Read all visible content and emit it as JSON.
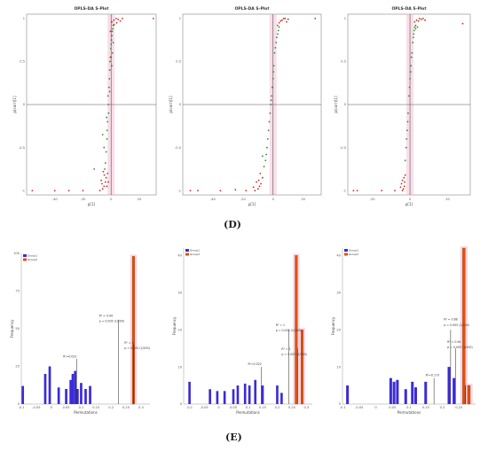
{
  "labels": {
    "d": "(D)",
    "e": "(E)"
  },
  "colors": {
    "pos": "#2e8b2e",
    "neg": "#c62a1e",
    "pink": "#f2b6cf",
    "blue": "#3a2bd8",
    "orange": "#e0520b",
    "grid": "#555555"
  },
  "chart_data": [
    {
      "type": "scatter",
      "title": "OPLS-DA S-Plot",
      "xlabel": "p[1]",
      "ylabel": "p(corr)[1]",
      "xlim": [
        -60,
        32
      ],
      "ylim": [
        -1.05,
        1.05
      ],
      "xticks": [
        -40,
        -20,
        0,
        20
      ],
      "yticks": [
        -1,
        -0.5,
        0,
        0.5,
        1
      ],
      "series_pos": [
        [
          -2.5,
          -0.2
        ],
        [
          -2,
          0
        ],
        [
          -1.5,
          0.2
        ],
        [
          -1,
          0.4
        ],
        [
          -0.5,
          0.55
        ],
        [
          0,
          0.7
        ],
        [
          0.6,
          0.8
        ],
        [
          1.2,
          0.88
        ],
        [
          2.2,
          0.93
        ],
        [
          -3,
          -0.4
        ],
        [
          -3.5,
          -0.55
        ],
        [
          -4,
          -0.68
        ],
        [
          -2.2,
          0.1
        ],
        [
          -1.8,
          -0.1
        ],
        [
          -0.8,
          0.5
        ],
        [
          0.3,
          0.75
        ],
        [
          1,
          0.6
        ],
        [
          -1.2,
          0.3
        ],
        [
          -4.5,
          -0.75
        ],
        [
          -2.8,
          -0.3
        ],
        [
          -0.2,
          0.65
        ],
        [
          0.8,
          0.85
        ],
        [
          -6,
          -0.35
        ],
        [
          -5,
          -0.5
        ],
        [
          1.5,
          0.72
        ],
        [
          -1,
          0.15
        ],
        [
          -3.2,
          -0.15
        ],
        [
          0.5,
          0.45
        ],
        [
          -12,
          -0.75
        ]
      ],
      "series_neg": [
        [
          -8,
          -1
        ],
        [
          -6,
          -0.98
        ],
        [
          -5,
          -0.95
        ],
        [
          -4,
          -0.9
        ],
        [
          -3.5,
          -0.85
        ],
        [
          -2.5,
          -0.8
        ],
        [
          -6.5,
          -0.92
        ],
        [
          -7,
          -0.88
        ],
        [
          -4.8,
          -0.82
        ],
        [
          -3,
          -0.95
        ],
        [
          -5.5,
          -0.78
        ],
        [
          -2,
          -0.9
        ],
        [
          0.5,
          0.96
        ],
        [
          2,
          0.98
        ],
        [
          3.5,
          1
        ],
        [
          5,
          0.99
        ],
        [
          6.5,
          0.97
        ],
        [
          8,
          1
        ],
        [
          1.5,
          0.92
        ],
        [
          4,
          0.95
        ],
        [
          -0.5,
          0.85
        ],
        [
          0,
          0.55
        ],
        [
          30,
          1
        ],
        [
          -56,
          -1
        ],
        [
          -30,
          -1
        ],
        [
          -20,
          -1
        ],
        [
          -40,
          -1
        ]
      ]
    },
    {
      "type": "scatter",
      "title": "OPLS-DA S-Plot",
      "xlabel": "p[1]",
      "ylabel": "p(corr)[1]",
      "xlim": [
        -60,
        32
      ],
      "ylim": [
        -1.05,
        1.05
      ],
      "xticks": [
        -40,
        -20,
        0,
        20
      ],
      "yticks": [
        -1,
        -0.5,
        0,
        0.5,
        1
      ],
      "series_pos": [
        [
          -4,
          -0.5
        ],
        [
          -3,
          -0.3
        ],
        [
          -2,
          -0.1
        ],
        [
          -1,
          0.1
        ],
        [
          0,
          0.3
        ],
        [
          0.5,
          0.45
        ],
        [
          1,
          0.6
        ],
        [
          2,
          0.72
        ],
        [
          3,
          0.82
        ],
        [
          4,
          0.9
        ],
        [
          -5,
          -0.65
        ],
        [
          -6,
          -0.72
        ],
        [
          -2.5,
          -0.2
        ],
        [
          -0.5,
          0.2
        ],
        [
          1.5,
          0.66
        ],
        [
          2.5,
          0.78
        ],
        [
          -3.5,
          -0.4
        ],
        [
          -1.5,
          0
        ],
        [
          0.2,
          0.38
        ],
        [
          3.5,
          0.86
        ],
        [
          -7,
          -0.6
        ],
        [
          -4.5,
          -0.58
        ],
        [
          -1.2,
          0.05
        ]
      ],
      "series_neg": [
        [
          -12,
          -1
        ],
        [
          -10,
          -0.98
        ],
        [
          -9,
          -0.95
        ],
        [
          -8,
          -0.92
        ],
        [
          -11,
          -0.9
        ],
        [
          -7,
          -0.85
        ],
        [
          -9.5,
          -0.88
        ],
        [
          -13,
          -0.96
        ],
        [
          -8.5,
          -0.8
        ],
        [
          4,
          0.95
        ],
        [
          6,
          0.98
        ],
        [
          8,
          1
        ],
        [
          10,
          0.99
        ],
        [
          5,
          0.97
        ],
        [
          7,
          1
        ],
        [
          9,
          0.96
        ],
        [
          3,
          0.92
        ],
        [
          28,
          1
        ],
        [
          -50,
          -1
        ],
        [
          -55,
          -1
        ],
        [
          -35,
          -1
        ],
        [
          -25,
          -0.99
        ],
        [
          -18,
          -1
        ]
      ]
    },
    {
      "type": "scatter",
      "title": "OPLS-DA S-Plot",
      "xlabel": "p[1]",
      "ylabel": "p(corr)[1]",
      "xlim": [
        -33,
        32
      ],
      "ylim": [
        -1.05,
        1.05
      ],
      "xticks": [
        -20,
        0,
        20
      ],
      "yticks": [
        -1,
        -0.5,
        0,
        0.5,
        1
      ],
      "series_pos": [
        [
          -2,
          -0.5
        ],
        [
          -1.5,
          -0.3
        ],
        [
          -1,
          -0.1
        ],
        [
          -0.5,
          0.1
        ],
        [
          0,
          0.3
        ],
        [
          0.5,
          0.45
        ],
        [
          1,
          0.6
        ],
        [
          1.5,
          0.72
        ],
        [
          2,
          0.82
        ],
        [
          2.5,
          0.9
        ],
        [
          -2.5,
          -0.65
        ],
        [
          -1.2,
          -0.2
        ],
        [
          -0.2,
          0.2
        ],
        [
          0.8,
          0.55
        ],
        [
          1.8,
          0.78
        ],
        [
          -1.8,
          -0.4
        ],
        [
          0.3,
          0.38
        ],
        [
          3,
          0.88
        ],
        [
          4,
          0.9
        ],
        [
          2.2,
          0.86
        ]
      ],
      "series_neg": [
        [
          -4,
          -1
        ],
        [
          -3.5,
          -0.98
        ],
        [
          -3,
          -0.95
        ],
        [
          -2.8,
          -0.9
        ],
        [
          -4.5,
          -0.92
        ],
        [
          -3.2,
          -0.85
        ],
        [
          -5,
          -0.96
        ],
        [
          -2.5,
          -0.82
        ],
        [
          -4,
          -0.88
        ],
        [
          2.5,
          0.96
        ],
        [
          3.5,
          0.98
        ],
        [
          5,
          1
        ],
        [
          6,
          0.99
        ],
        [
          4.5,
          0.97
        ],
        [
          7,
          1
        ],
        [
          3,
          0.92
        ],
        [
          8,
          0.98
        ],
        [
          28,
          0.94
        ],
        [
          -28,
          -1
        ],
        [
          -30,
          -1
        ],
        [
          -15,
          -1
        ],
        [
          -8,
          -1
        ]
      ]
    },
    {
      "type": "bar",
      "legend": [
        "Group1",
        "Group2"
      ],
      "xlabel": "Permutations",
      "ylabel": "Frequency",
      "xlim": [
        -0.1,
        0.33
      ],
      "ylim": [
        0,
        100
      ],
      "xticks": [
        -0.1,
        -0.05,
        0,
        0.05,
        0.1,
        0.15,
        0.2,
        0.25,
        0.3
      ],
      "yticks": [
        0,
        25,
        50,
        75,
        100
      ],
      "blue_bars": [
        [
          -0.095,
          12
        ],
        [
          -0.02,
          20
        ],
        [
          -0.005,
          25
        ],
        [
          0.025,
          11
        ],
        [
          0.05,
          10
        ],
        [
          0.065,
          16
        ],
        [
          0.072,
          20
        ],
        [
          0.08,
          22
        ],
        [
          0.088,
          10
        ],
        [
          0.1,
          14
        ],
        [
          0.115,
          10
        ],
        [
          0.13,
          12
        ]
      ],
      "orange_bars": [
        [
          0.275,
          98
        ]
      ],
      "markers": [
        [
          0.085,
          30
        ],
        [
          0.225,
          56
        ],
        [
          0.275,
          40
        ]
      ],
      "annotations": [
        {
          "x": 0.04,
          "y": 31,
          "text": "R²=0.022"
        },
        {
          "x": 0.16,
          "y": 58,
          "text": "R² = 0.94"
        },
        {
          "x": 0.16,
          "y": 54.5,
          "text": "p = 0.005 (1/200)"
        },
        {
          "x": 0.245,
          "y": 40,
          "text": "R² = 1"
        },
        {
          "x": 0.245,
          "y": 36.5,
          "text": "p = 0.005 (1/200)"
        }
      ]
    },
    {
      "type": "bar",
      "legend": [
        "Group1",
        "Group2"
      ],
      "xlabel": "Permutations",
      "ylabel": "Frequency",
      "xlim": [
        -0.12,
        0.32
      ],
      "ylim": [
        0,
        42
      ],
      "xticks": [
        -0.1,
        -0.05,
        0,
        0.05,
        0.1,
        0.15,
        0.2,
        0.25,
        0.3
      ],
      "yticks": [
        0,
        10,
        20,
        30,
        40
      ],
      "blue_bars": [
        [
          -0.1,
          6
        ],
        [
          -0.03,
          4
        ],
        [
          -0.005,
          3.5
        ],
        [
          0.02,
          3.5
        ],
        [
          0.05,
          4
        ],
        [
          0.065,
          5
        ],
        [
          0.09,
          5.5
        ],
        [
          0.105,
          5
        ],
        [
          0.125,
          6.5
        ],
        [
          0.15,
          5
        ],
        [
          0.2,
          5
        ],
        [
          0.215,
          3
        ]
      ],
      "orange_bars": [
        [
          0.265,
          40
        ],
        [
          0.285,
          20
        ]
      ],
      "markers": [
        [
          0.145,
          10
        ],
        [
          0.24,
          20
        ],
        [
          0.27,
          15
        ]
      ],
      "annotations": [
        {
          "x": 0.1,
          "y": 10.5,
          "text": "R²=0.022"
        },
        {
          "x": 0.195,
          "y": 21,
          "text": "R² = 1"
        },
        {
          "x": 0.195,
          "y": 19.6,
          "text": "p = 0.005 (1/200)"
        },
        {
          "x": 0.215,
          "y": 14.5,
          "text": "R² = 1"
        },
        {
          "x": 0.215,
          "y": 13.1,
          "text": "p = 0.005 (1/200)"
        }
      ]
    },
    {
      "type": "bar",
      "legend": [
        "Group1",
        "Group2"
      ],
      "xlabel": "Permutations",
      "ylabel": "Frequency",
      "xlim": [
        -0.1,
        0.3
      ],
      "ylim": [
        0,
        42
      ],
      "xticks": [
        -0.1,
        -0.05,
        0,
        0.05,
        0.1,
        0.15,
        0.2,
        0.25
      ],
      "yticks": [
        0,
        10,
        20,
        30,
        40
      ],
      "blue_bars": [
        [
          -0.085,
          5
        ],
        [
          0.045,
          7
        ],
        [
          0.055,
          6
        ],
        [
          0.065,
          6.5
        ],
        [
          0.09,
          4
        ],
        [
          0.11,
          6
        ],
        [
          0.12,
          4.5
        ],
        [
          0.15,
          6
        ],
        [
          0.22,
          10
        ],
        [
          0.235,
          7
        ]
      ],
      "orange_bars": [
        [
          0.265,
          42
        ],
        [
          0.28,
          5
        ]
      ],
      "markers": [
        [
          0.175,
          7
        ],
        [
          0.225,
          20
        ],
        [
          0.24,
          15
        ],
        [
          0.27,
          5
        ]
      ],
      "annotations": [
        {
          "x": 0.15,
          "y": 7.5,
          "text": "R²=0.173"
        },
        {
          "x": 0.205,
          "y": 22.5,
          "text": "R² = 0.68"
        },
        {
          "x": 0.205,
          "y": 21,
          "text": "p = 0.005 (1/200)"
        },
        {
          "x": 0.215,
          "y": 16.5,
          "text": "R² = 0.94"
        },
        {
          "x": 0.215,
          "y": 15,
          "text": "p = 0.005 (1/200)"
        }
      ]
    }
  ]
}
